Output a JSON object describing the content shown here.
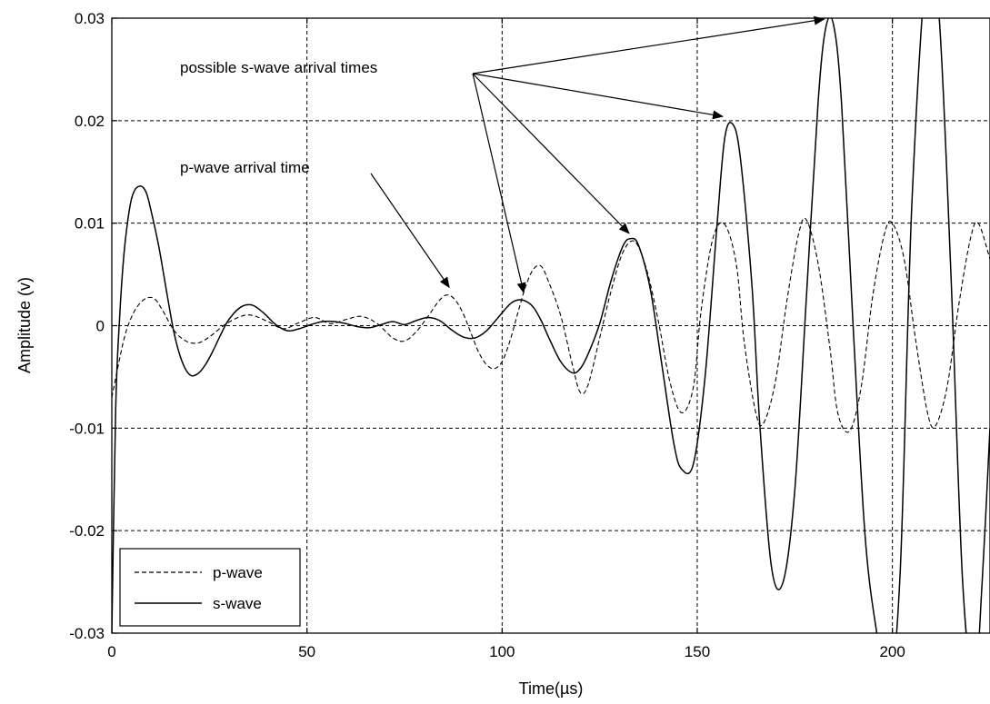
{
  "chart_data": {
    "type": "line",
    "title": "",
    "xlabel": "Time(µs)",
    "ylabel": "Amplitude (v)",
    "xlim": [
      0,
      225
    ],
    "ylim": [
      -0.03,
      0.03
    ],
    "xticks": [
      0,
      50,
      100,
      150,
      200
    ],
    "xtick_labels": [
      "0",
      "50",
      "100",
      "150",
      "200"
    ],
    "yticks": [
      -0.03,
      -0.02,
      -0.01,
      0,
      0.01,
      0.02,
      0.03
    ],
    "ytick_labels": [
      "-0.03",
      "-0.02",
      "-0.01",
      "0",
      "0.01",
      "0.02",
      "0.03"
    ],
    "grid": true,
    "legend_position": "bottom-left",
    "series": [
      {
        "name": "p-wave",
        "style": "dashed",
        "color": "#000000",
        "x": [
          0,
          3,
          5,
          7,
          9,
          11,
          13,
          16,
          19,
          22,
          25,
          29,
          33,
          36,
          40,
          44,
          48,
          52,
          56,
          60,
          64,
          68,
          72,
          75,
          78,
          81,
          84,
          86,
          88,
          90,
          92,
          94,
          96,
          98,
          100,
          102,
          104,
          106,
          108,
          110,
          112,
          115,
          118,
          120,
          122,
          125,
          128,
          131,
          134,
          137,
          140,
          143,
          146,
          149,
          151,
          154,
          157,
          160,
          162,
          165,
          167,
          170,
          173,
          176,
          178,
          181,
          184,
          186,
          189,
          192,
          195,
          198,
          200,
          203,
          206,
          209,
          211,
          214,
          217,
          220,
          222,
          225
        ],
        "y": [
          -0.007,
          -0.0015,
          0.0008,
          0.0021,
          0.0027,
          0.0026,
          0.0015,
          -0.0005,
          -0.0015,
          -0.0017,
          -0.0011,
          0.0001,
          0.0009,
          0.001,
          0.0004,
          -0.0003,
          0.0003,
          0.0008,
          0.0002,
          0.0006,
          0.0009,
          0.0002,
          -0.0012,
          -0.0015,
          -0.0006,
          0.0009,
          0.0025,
          0.003,
          0.0025,
          0.0012,
          -0.0007,
          -0.0026,
          -0.0038,
          -0.0042,
          -0.0035,
          -0.0015,
          0.0012,
          0.0038,
          0.0055,
          0.0058,
          0.0042,
          0.001,
          -0.0038,
          -0.0065,
          -0.0058,
          -0.0012,
          0.0035,
          0.0072,
          0.0082,
          0.0055,
          0.0005,
          -0.0055,
          -0.0085,
          -0.006,
          0.0015,
          0.0085,
          0.0099,
          0.006,
          -0.0015,
          -0.0085,
          -0.0095,
          -0.0055,
          0.0025,
          0.009,
          0.0103,
          0.006,
          -0.0022,
          -0.0085,
          -0.0103,
          -0.006,
          0.003,
          0.009,
          0.01,
          0.0065,
          -0.0015,
          -0.0085,
          -0.0098,
          -0.006,
          0.002,
          0.0085,
          0.01,
          0.0065
        ]
      },
      {
        "name": "s-wave",
        "style": "solid",
        "color": "#000000",
        "x": [
          0,
          1,
          2,
          3,
          4,
          5,
          6,
          7,
          8,
          9,
          10,
          12,
          14,
          16,
          18,
          20,
          22,
          24,
          26,
          28,
          30,
          33,
          36,
          39,
          42,
          45,
          48,
          51,
          54,
          57,
          60,
          63,
          66,
          69,
          72,
          75,
          78,
          81,
          84,
          87,
          90,
          93,
          96,
          99,
          102,
          104,
          106,
          108,
          110,
          112,
          115,
          118,
          120,
          122,
          125,
          128,
          131,
          133,
          135,
          138,
          141,
          144,
          146,
          149,
          152,
          155,
          157,
          159,
          161,
          164,
          166,
          169,
          172,
          175,
          178,
          181,
          183,
          185,
          187,
          190,
          193,
          196,
          199,
          202,
          205,
          209,
          212,
          215,
          218,
          221,
          223,
          225
        ],
        "y": [
          -0.03,
          -0.008,
          0.0008,
          0.0065,
          0.01,
          0.0123,
          0.0133,
          0.0136,
          0.0135,
          0.0128,
          0.0113,
          0.0078,
          0.0034,
          -0.0008,
          -0.0035,
          -0.0048,
          -0.0047,
          -0.0038,
          -0.0024,
          -0.0008,
          0.0006,
          0.0018,
          0.002,
          0.0012,
          0.0001,
          -0.0005,
          -0.0003,
          0.0001,
          0.0004,
          0.0004,
          0.0002,
          -0.0001,
          -0.0002,
          0.0001,
          0.0004,
          0.0001,
          0.0005,
          0.0008,
          0.0005,
          -0.0004,
          -0.0011,
          -0.0012,
          -0.0005,
          0.0008,
          0.0021,
          0.0025,
          0.0024,
          0.0018,
          0.0005,
          -0.0012,
          -0.0035,
          -0.0046,
          -0.0042,
          -0.0028,
          0.0002,
          0.0045,
          0.0078,
          0.0085,
          0.0078,
          0.0035,
          -0.004,
          -0.0115,
          -0.014,
          -0.0135,
          -0.005,
          0.0095,
          0.0182,
          0.0197,
          0.0165,
          0.004,
          -0.0095,
          -0.0235,
          -0.025,
          -0.016,
          0.003,
          0.022,
          0.0292,
          0.0292,
          0.0215,
          -0.0005,
          -0.0205,
          -0.03,
          -0.036,
          -0.024,
          0.012,
          0.036,
          0.03,
          0.005,
          -0.025,
          -0.035,
          -0.025,
          -0.01
        ]
      }
    ],
    "legend": [
      {
        "label": "p-wave",
        "style": "dashed"
      },
      {
        "label": "s-wave",
        "style": "solid"
      }
    ],
    "annotations": [
      {
        "text": "possible s-wave arrival times",
        "points_to": [
          [
            106,
            0.0025
          ],
          [
            133,
            0.0083
          ],
          [
            157,
            0.0197
          ],
          [
            183,
            0.0292
          ]
        ]
      },
      {
        "text": "p-wave arrival time",
        "points_to": [
          [
            86,
            0.0032
          ]
        ]
      }
    ]
  }
}
